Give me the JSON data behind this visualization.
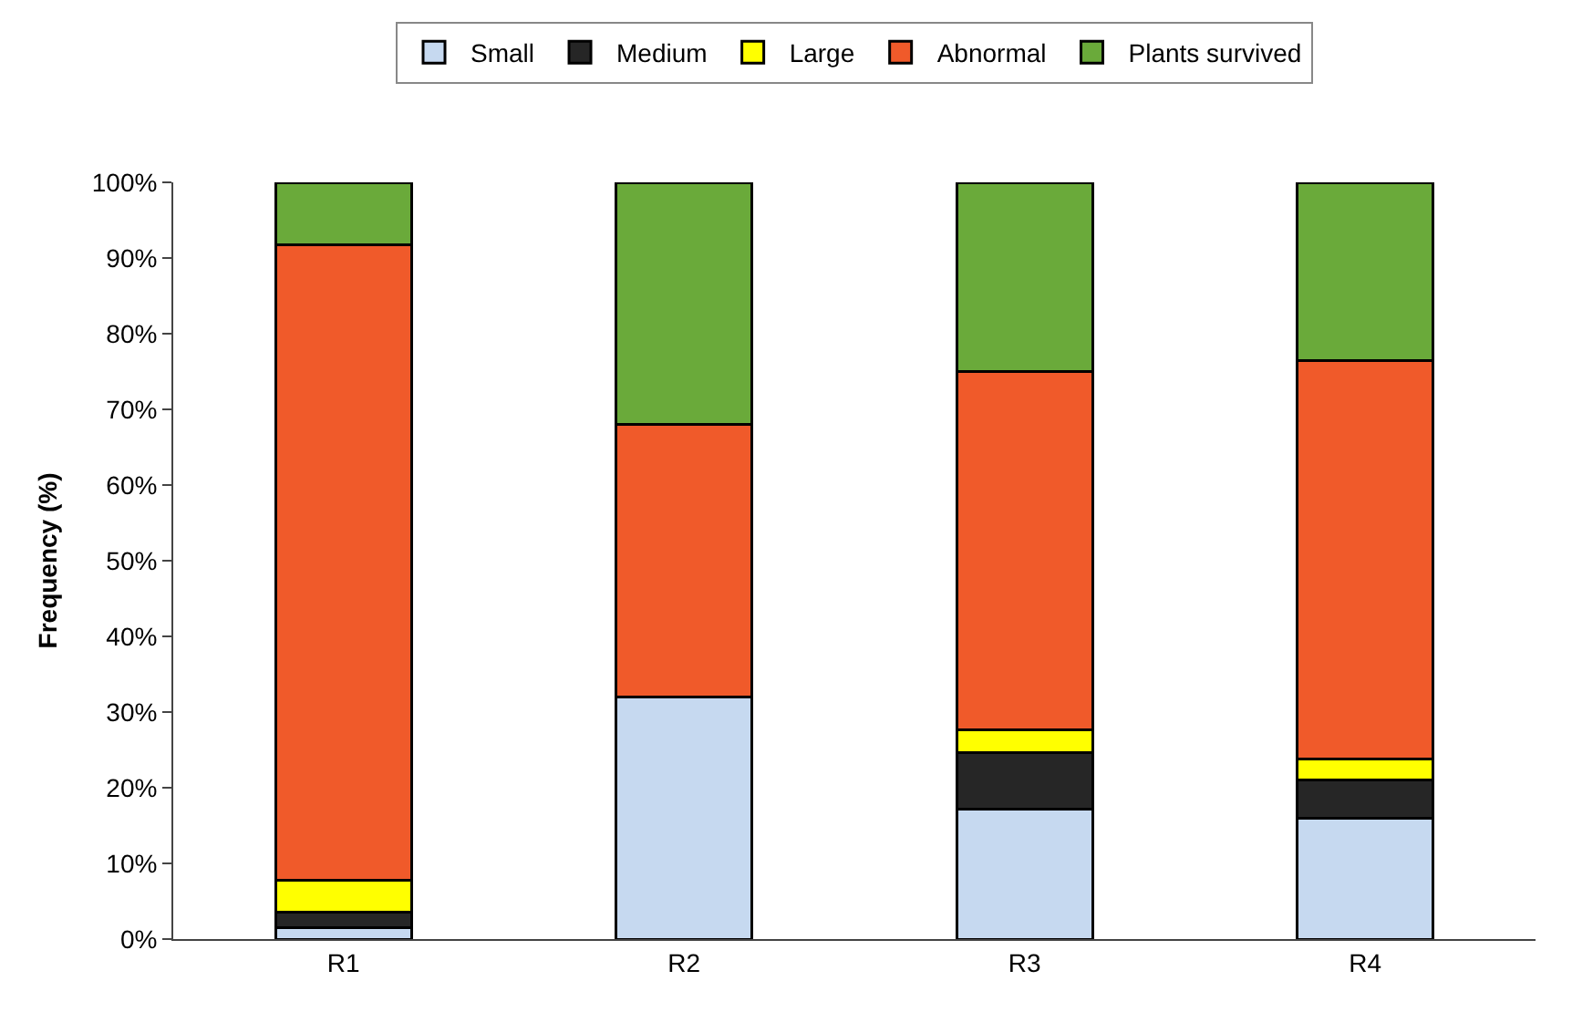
{
  "chart_data": {
    "type": "bar",
    "stacked": true,
    "ylabel": "Frequency (%)",
    "categories": [
      "R1",
      "R2",
      "R3",
      "R4"
    ],
    "series": [
      {
        "name": "Small",
        "color": "#c6d9f0",
        "values": [
          1.5,
          32,
          17.2,
          16
        ]
      },
      {
        "name": "Medium",
        "color": "#262626",
        "values": [
          2,
          0,
          7.5,
          5
        ]
      },
      {
        "name": "Large",
        "color": "#ffff00",
        "values": [
          4.3,
          0,
          3,
          2.8
        ]
      },
      {
        "name": "Abnormal",
        "color": "#f05a2a",
        "values": [
          84,
          36,
          47.3,
          52.7
        ]
      },
      {
        "name": "Plants survived",
        "color": "#6aaa3a",
        "values": [
          8.2,
          32,
          25,
          23.5
        ]
      }
    ],
    "ylim": [
      0,
      100
    ],
    "yticks": [
      {
        "value": 0,
        "label": "0%"
      },
      {
        "value": 10,
        "label": "10%"
      },
      {
        "value": 20,
        "label": "20%"
      },
      {
        "value": 30,
        "label": "30%"
      },
      {
        "value": 40,
        "label": "40%"
      },
      {
        "value": 50,
        "label": "50%"
      },
      {
        "value": 60,
        "label": "60%"
      },
      {
        "value": 70,
        "label": "70%"
      },
      {
        "value": 80,
        "label": "80%"
      },
      {
        "value": 90,
        "label": "90%"
      },
      {
        "value": 100,
        "label": "100%"
      }
    ],
    "grid": false,
    "legend": "top"
  }
}
